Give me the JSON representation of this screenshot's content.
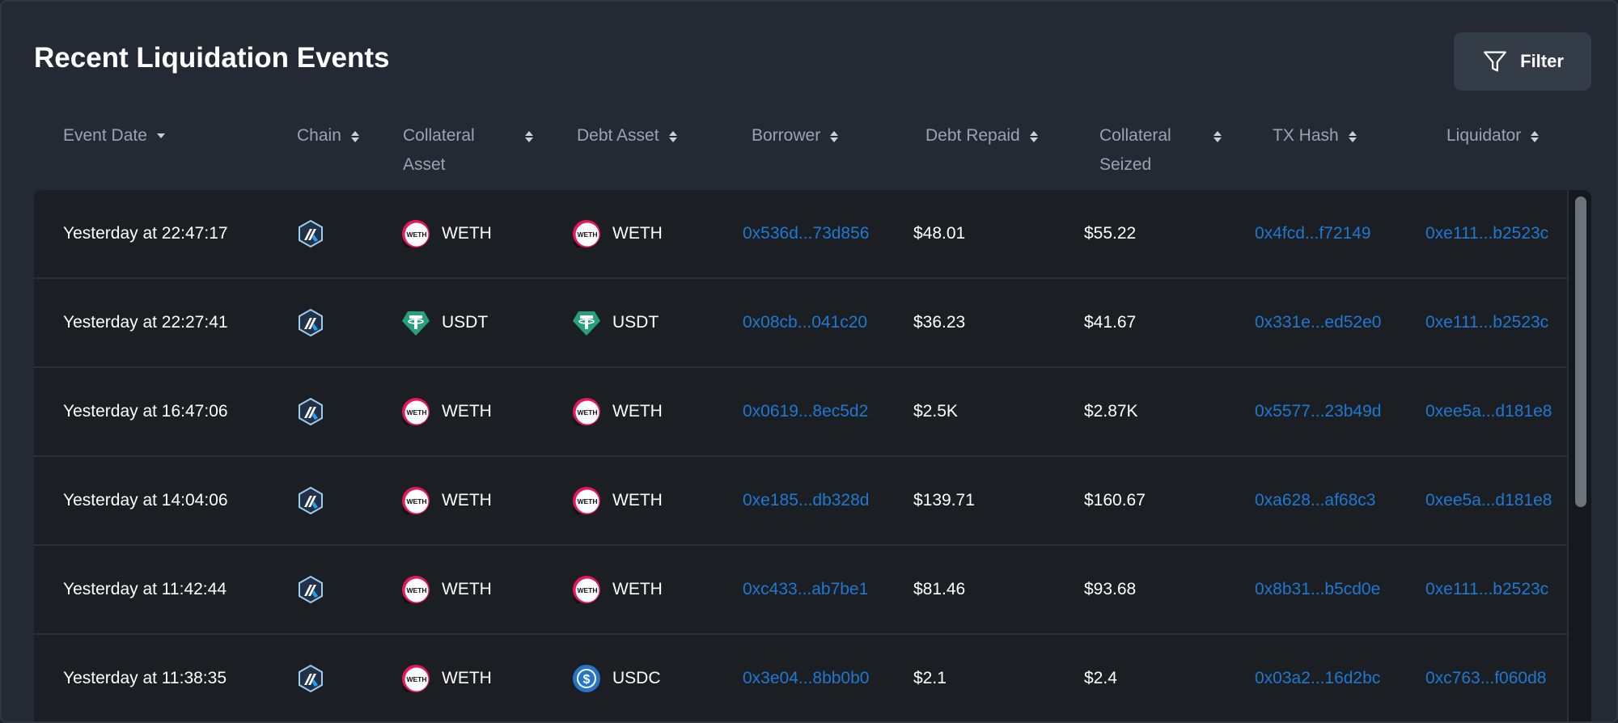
{
  "title": "Recent Liquidation Events",
  "filter_label": "Filter",
  "columns": [
    {
      "label": "Event Date",
      "line2": ""
    },
    {
      "label": "Chain",
      "line2": ""
    },
    {
      "label": "Collateral",
      "line2": "Asset"
    },
    {
      "label": "Debt Asset",
      "line2": ""
    },
    {
      "label": "Borrower",
      "line2": ""
    },
    {
      "label": "Debt Repaid",
      "line2": ""
    },
    {
      "label": "Collateral",
      "line2": "Seized"
    },
    {
      "label": "TX Hash",
      "line2": ""
    },
    {
      "label": "Liquidator",
      "line2": ""
    }
  ],
  "rows": [
    {
      "date": "Yesterday at 22:47:17",
      "chain_icon": "arbitrum-icon",
      "collateral": "WETH",
      "debt_asset": "WETH",
      "borrower": "0x536d...73d856",
      "debt_repaid": "$48.01",
      "collateral_seized": "$55.22",
      "tx_hash": "0x4fcd...f72149",
      "liquidator": "0xe111...b2523c"
    },
    {
      "date": "Yesterday at 22:27:41",
      "chain_icon": "arbitrum-icon",
      "collateral": "USDT",
      "debt_asset": "USDT",
      "borrower": "0x08cb...041c20",
      "debt_repaid": "$36.23",
      "collateral_seized": "$41.67",
      "tx_hash": "0x331e...ed52e0",
      "liquidator": "0xe111...b2523c"
    },
    {
      "date": "Yesterday at 16:47:06",
      "chain_icon": "arbitrum-icon",
      "collateral": "WETH",
      "debt_asset": "WETH",
      "borrower": "0x0619...8ec5d2",
      "debt_repaid": "$2.5K",
      "collateral_seized": "$2.87K",
      "tx_hash": "0x5577...23b49d",
      "liquidator": "0xee5a...d181e8"
    },
    {
      "date": "Yesterday at 14:04:06",
      "chain_icon": "arbitrum-icon",
      "collateral": "WETH",
      "debt_asset": "WETH",
      "borrower": "0xe185...db328d",
      "debt_repaid": "$139.71",
      "collateral_seized": "$160.67",
      "tx_hash": "0xa628...af68c3",
      "liquidator": "0xee5a...d181e8"
    },
    {
      "date": "Yesterday at 11:42:44",
      "chain_icon": "arbitrum-icon",
      "collateral": "WETH",
      "debt_asset": "WETH",
      "borrower": "0xc433...ab7be1",
      "debt_repaid": "$81.46",
      "collateral_seized": "$93.68",
      "tx_hash": "0x8b31...b5cd0e",
      "liquidator": "0xe111...b2523c"
    },
    {
      "date": "Yesterday at 11:38:35",
      "chain_icon": "arbitrum-icon",
      "collateral": "WETH",
      "debt_asset": "USDC",
      "borrower": "0x3e04...8bb0b0",
      "debt_repaid": "$2.1",
      "collateral_seized": "$2.4",
      "tx_hash": "0x03a2...16d2bc",
      "liquidator": "0xc763...f060d8"
    }
  ],
  "coin_icons": {
    "WETH": "weth-icon",
    "USDT": "usdt-icon",
    "USDC": "usdc-icon"
  },
  "colors": {
    "background": "#232a33",
    "table_bg": "#1b1f23",
    "link": "#1f78d1",
    "header_text": "#9aa4b0",
    "usdt": "#26a17b",
    "usdc": "#2775ca",
    "weth_ring": "#e8175d",
    "arbitrum": "#28a0f0"
  }
}
